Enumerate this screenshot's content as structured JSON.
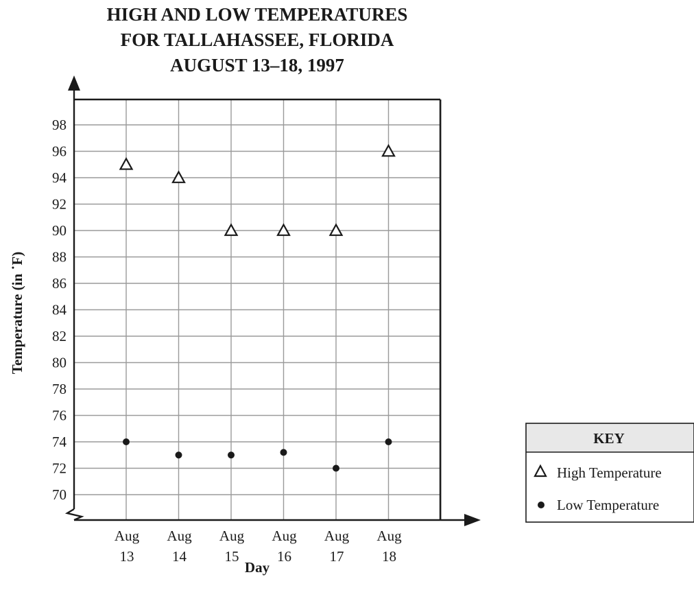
{
  "chart_data": {
    "type": "scatter",
    "title": [
      "HIGH AND LOW TEMPERATURES",
      "FOR TALLAHASSEE, FLORIDA",
      "AUGUST 13–18, 1997"
    ],
    "xlabel": "Day",
    "ylabel": "Temperature (in ˙F)",
    "categories": [
      [
        "Aug",
        "13"
      ],
      [
        "Aug",
        "14"
      ],
      [
        "Aug",
        "15"
      ],
      [
        "Aug",
        "16"
      ],
      [
        "Aug",
        "17"
      ],
      [
        "Aug",
        "18"
      ]
    ],
    "ylim": [
      68,
      100
    ],
    "yticks": [
      70,
      72,
      74,
      76,
      78,
      80,
      82,
      84,
      86,
      88,
      90,
      92,
      94,
      96,
      98
    ],
    "axis_break": true,
    "grid": true,
    "legend": "right",
    "series": [
      {
        "name": "High Temperature",
        "marker": "triangle",
        "values": [
          95,
          94,
          90,
          90,
          90,
          96
        ]
      },
      {
        "name": "Low Temperature",
        "marker": "dot",
        "values": [
          74,
          73,
          73,
          73.2,
          72,
          74
        ]
      }
    ],
    "key": {
      "title": "KEY"
    }
  }
}
